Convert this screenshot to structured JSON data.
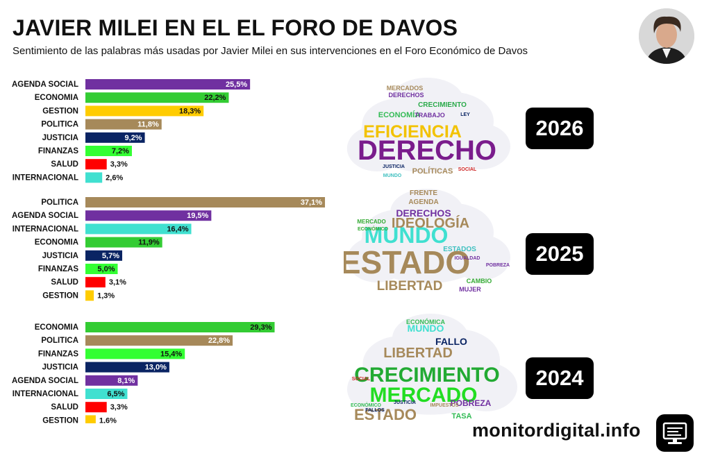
{
  "header": {
    "title": "JAVIER MILEI EN EL EL FORO DE DAVOS",
    "subtitle": "Sentimiento de las palabras más usadas por Javier Milei en sus intervenciones en el Foro Económico de Davos"
  },
  "colors": {
    "AGENDA SOCIAL": "#7030a0",
    "ECONOMIA": "#33cc33",
    "GESTION": "#ffcc00",
    "POLITICA": "#a6895a",
    "JUSTICIA": "#0a2463",
    "FINANZAS": "#33ff33",
    "SALUD": "#ff0000",
    "INTERNACIONAL": "#40e0d0"
  },
  "chart_data": [
    {
      "type": "bar",
      "orientation": "horizontal",
      "year": "2026",
      "categories": [
        "AGENDA SOCIAL",
        "ECONOMIA",
        "GESTION",
        "POLITICA",
        "JUSTICIA",
        "FINANZAS",
        "SALUD",
        "INTERNACIONAL"
      ],
      "values": [
        25.5,
        22.2,
        18.3,
        11.8,
        9.2,
        7.2,
        3.3,
        2.6
      ],
      "labels": [
        "25,5%",
        "22,2%",
        "18,3%",
        "11,8%",
        "9,2%",
        "7,2%",
        "3,3%",
        "2,6%"
      ]
    },
    {
      "type": "bar",
      "orientation": "horizontal",
      "year": "2025",
      "categories": [
        "POLITICA",
        "AGENDA SOCIAL",
        "INTERNACIONAL",
        "ECONOMIA",
        "JUSTICIA",
        "FINANZAS",
        "SALUD",
        "GESTION"
      ],
      "values": [
        37.1,
        19.5,
        16.4,
        11.9,
        5.7,
        5.0,
        3.1,
        1.3
      ],
      "labels": [
        "37,1%",
        "19,5%",
        "16,4%",
        "11,9%",
        "5,7%",
        "5,0%",
        "3,1%",
        "1,3%"
      ]
    },
    {
      "type": "bar",
      "orientation": "horizontal",
      "year": "2024",
      "categories": [
        "ECONOMIA",
        "POLITICA",
        "FINANZAS",
        "JUSTICIA",
        "AGENDA SOCIAL",
        "INTERNACIONAL",
        "SALUD",
        "GESTION"
      ],
      "values": [
        29.3,
        22.8,
        15.4,
        13.0,
        8.1,
        6.5,
        3.3,
        1.6
      ],
      "labels": [
        "29,3%",
        "22,8%",
        "15,4%",
        "13,0%",
        "8,1%",
        "6,5%",
        "3,3%",
        "1,6%"
      ]
    }
  ],
  "word_clouds": [
    {
      "year": "2026",
      "words": [
        {
          "text": "DERECHO",
          "color": "#7a1c8c"
        },
        {
          "text": "EFICIENCIA",
          "color": "#f2c200"
        },
        {
          "text": "ECONOMÍA",
          "color": "#33bb55"
        },
        {
          "text": "CRECIMIENTO",
          "color": "#2aaa4a"
        },
        {
          "text": "MERCADOS",
          "color": "#a6895a"
        },
        {
          "text": "DERECHOS",
          "color": "#7030a0"
        },
        {
          "text": "TRABAJO",
          "color": "#7030a0"
        },
        {
          "text": "POLÍTICAS",
          "color": "#a6895a"
        },
        {
          "text": "JUSTICIA",
          "color": "#0a2463"
        },
        {
          "text": "SOCIAL",
          "color": "#cc2222"
        },
        {
          "text": "LEY",
          "color": "#0a2463"
        },
        {
          "text": "MUNDO",
          "color": "#40c0c0"
        }
      ]
    },
    {
      "year": "2025",
      "words": [
        {
          "text": "ESTADO",
          "color": "#a6895a"
        },
        {
          "text": "MUNDO",
          "color": "#40e0d0"
        },
        {
          "text": "IDEOLOGÍA",
          "color": "#a6895a"
        },
        {
          "text": "LIBERTAD",
          "color": "#a6895a"
        },
        {
          "text": "DERECHOS",
          "color": "#7030a0"
        },
        {
          "text": "FRENTE",
          "color": "#a6895a"
        },
        {
          "text": "AGENDA",
          "color": "#a6895a"
        },
        {
          "text": "ESTADOS",
          "color": "#40c0c0"
        },
        {
          "text": "IGUALDAD",
          "color": "#7030a0"
        },
        {
          "text": "CAMBIO",
          "color": "#33aa33"
        },
        {
          "text": "MUJER",
          "color": "#7030a0"
        },
        {
          "text": "MERCADO",
          "color": "#33aa33"
        },
        {
          "text": "ECONÓMICO",
          "color": "#33aa33"
        },
        {
          "text": "POBREZA",
          "color": "#7030a0"
        }
      ]
    },
    {
      "year": "2024",
      "words": [
        {
          "text": "CRECIMIENTO",
          "color": "#22aa33"
        },
        {
          "text": "MERCADO",
          "color": "#22dd22"
        },
        {
          "text": "LIBERTAD",
          "color": "#a6895a"
        },
        {
          "text": "ESTADO",
          "color": "#a6895a"
        },
        {
          "text": "FALLO",
          "color": "#0a2463"
        },
        {
          "text": "MUNDO",
          "color": "#40e0d0"
        },
        {
          "text": "ECONÓMICA",
          "color": "#33bb55"
        },
        {
          "text": "POBREZA",
          "color": "#7030a0"
        },
        {
          "text": "TASA",
          "color": "#33bb55"
        },
        {
          "text": "SOCIAL",
          "color": "#cc2222"
        },
        {
          "text": "ECONÓMICO",
          "color": "#33bb55"
        },
        {
          "text": "FALLOS",
          "color": "#0a2463"
        },
        {
          "text": "JUSTICIA",
          "color": "#0a2463"
        },
        {
          "text": "IMPUESTOS",
          "color": "#a6895a"
        }
      ]
    }
  ],
  "footer": {
    "brand": "monitordigital.info"
  }
}
